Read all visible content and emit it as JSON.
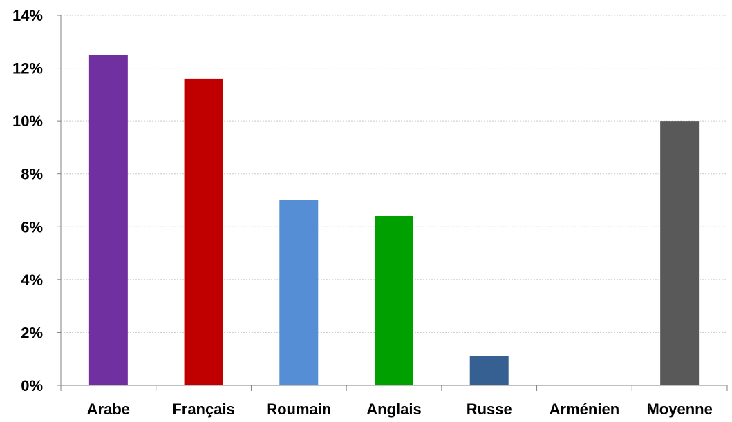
{
  "chart_data": {
    "type": "bar",
    "title": "",
    "xlabel": "",
    "ylabel": "",
    "categories": [
      "Arabe",
      "Français",
      "Roumain",
      "Anglais",
      "Russe",
      "Arménien",
      "Moyenne"
    ],
    "values": [
      12.5,
      11.6,
      7.0,
      6.4,
      1.1,
      0.0,
      10.0
    ],
    "colors": [
      "#7030a0",
      "#c00000",
      "#558ed5",
      "#00a000",
      "#376092",
      "#ffffff",
      "#595959"
    ],
    "ylim": [
      0,
      14
    ],
    "yticks": [
      0,
      2,
      4,
      6,
      8,
      10,
      12,
      14
    ],
    "ytick_labels": [
      "0%",
      "2%",
      "4%",
      "6%",
      "8%",
      "10%",
      "12%",
      "14%"
    ],
    "grid": true
  }
}
